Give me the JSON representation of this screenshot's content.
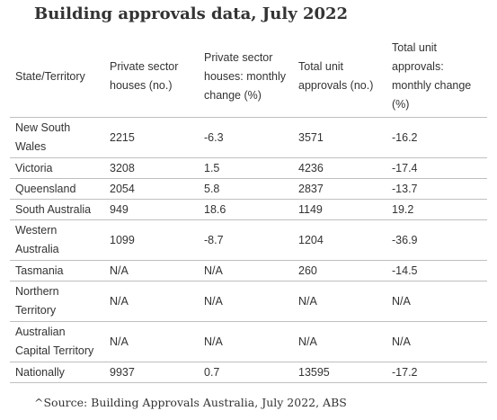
{
  "title": "Building approvals data, July 2022",
  "table": {
    "headers": [
      "State/Territory",
      "Private sector houses (no.)",
      "Private sector houses: monthly change (%)",
      "Total unit approvals (no.)",
      "Total unit approvals: monthly change (%)"
    ],
    "rows": [
      [
        "New South Wales",
        "2215",
        "-6.3",
        "3571",
        "-16.2"
      ],
      [
        "Victoria",
        "3208",
        "1.5",
        "4236",
        "-17.4"
      ],
      [
        "Queensland",
        "2054",
        "5.8",
        "2837",
        "-13.7"
      ],
      [
        "South Australia",
        "949",
        "18.6",
        "1149",
        "19.2"
      ],
      [
        "Western Australia",
        "1099",
        "-8.7",
        "1204",
        "-36.9"
      ],
      [
        "Tasmania",
        "N/A",
        "N/A",
        "260",
        "-14.5"
      ],
      [
        "Northern Territory",
        "N/A",
        "N/A",
        "N/A",
        "N/A"
      ],
      [
        "Australian Capital Territory",
        "N/A",
        "N/A",
        "N/A",
        "N/A"
      ],
      [
        "Nationally",
        "9937",
        "0.7",
        "13595",
        "-17.2"
      ]
    ]
  },
  "source": "^Source: Building Approvals Australia, July 2022, ABS"
}
